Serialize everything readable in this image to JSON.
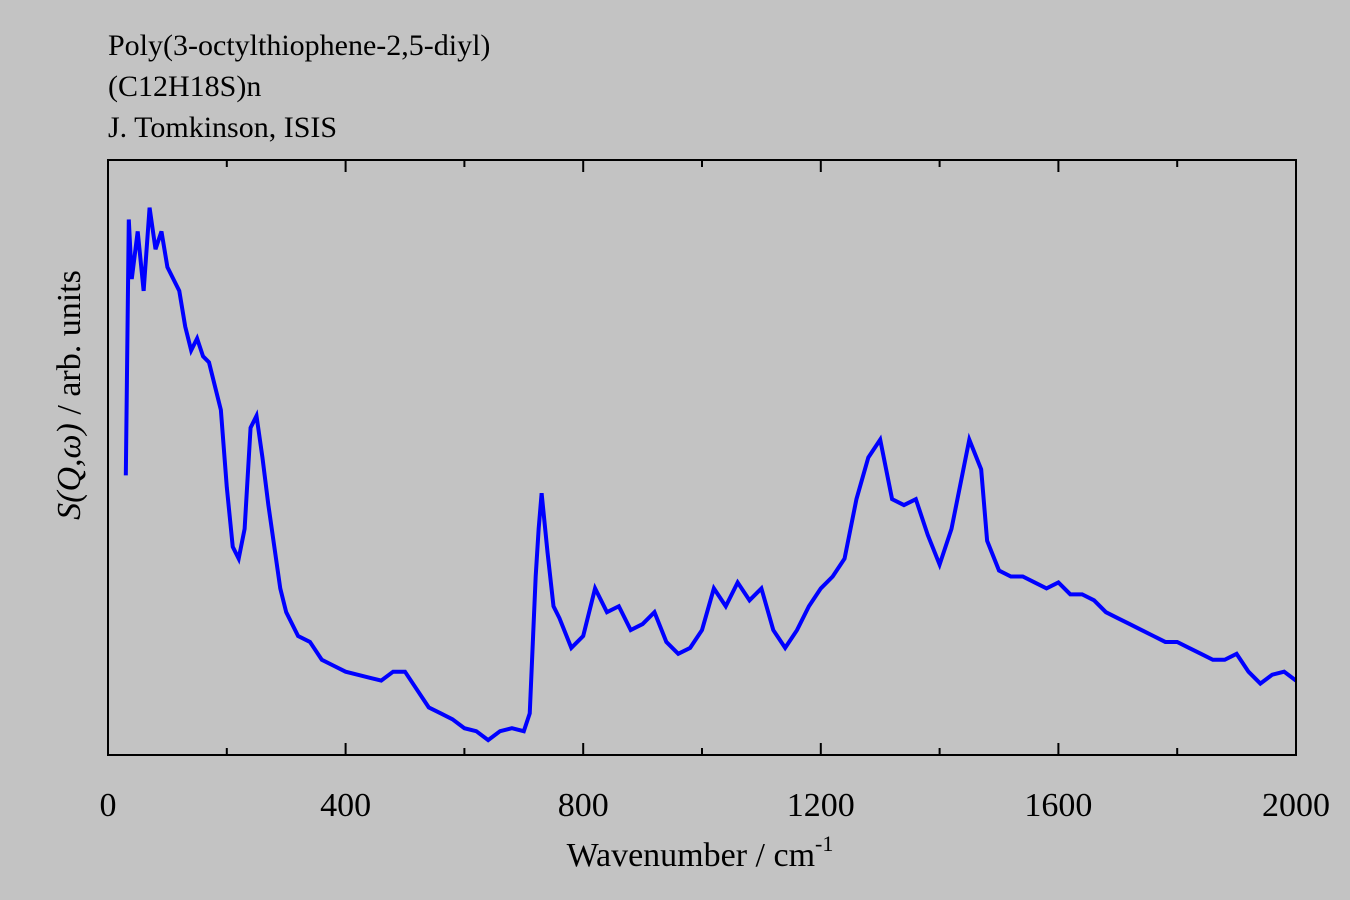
{
  "chart_data": {
    "type": "line",
    "title_lines": [
      "Poly(3-octylthiophene-2,5-diyl)",
      "(C12H18S)n",
      "J. Tomkinson, ISIS"
    ],
    "xlabel": "Wavenumber / cm",
    "xlabel_sup": "-1",
    "ylabel_italic": "S(Q,ω)",
    "ylabel": " / arb. units",
    "xlim": [
      0,
      2000
    ],
    "ylim": [
      0,
      100
    ],
    "xticks": [
      0,
      400,
      800,
      1200,
      1600,
      2000
    ],
    "xminorticks": [
      200,
      600,
      1000,
      1400,
      1800
    ],
    "grid": false,
    "series": [
      {
        "name": "S(Q,ω)",
        "color": "#0000ff",
        "x": [
          30,
          35,
          40,
          50,
          60,
          70,
          80,
          90,
          100,
          110,
          120,
          130,
          140,
          150,
          160,
          170,
          180,
          190,
          200,
          210,
          220,
          230,
          240,
          250,
          260,
          270,
          280,
          290,
          300,
          320,
          340,
          360,
          380,
          400,
          420,
          440,
          460,
          480,
          500,
          520,
          540,
          560,
          580,
          600,
          620,
          640,
          660,
          680,
          700,
          710,
          720,
          725,
          730,
          740,
          750,
          760,
          780,
          800,
          820,
          840,
          860,
          880,
          900,
          920,
          940,
          960,
          980,
          1000,
          1020,
          1040,
          1060,
          1080,
          1100,
          1120,
          1140,
          1160,
          1180,
          1200,
          1220,
          1240,
          1260,
          1280,
          1300,
          1320,
          1340,
          1360,
          1380,
          1400,
          1420,
          1440,
          1450,
          1470,
          1480,
          1500,
          1520,
          1540,
          1560,
          1580,
          1600,
          1620,
          1640,
          1660,
          1680,
          1700,
          1720,
          1740,
          1760,
          1780,
          1800,
          1820,
          1840,
          1860,
          1880,
          1900,
          1920,
          1940,
          1960,
          1980,
          2000
        ],
        "values": [
          47,
          90,
          80,
          88,
          78,
          92,
          85,
          88,
          82,
          80,
          78,
          72,
          68,
          70,
          67,
          66,
          62,
          58,
          45,
          35,
          33,
          38,
          55,
          57,
          50,
          42,
          35,
          28,
          24,
          20,
          19,
          16,
          15,
          14,
          13.5,
          13,
          12.5,
          14,
          14,
          11,
          8,
          7,
          6,
          4.5,
          4,
          2.5,
          4,
          4.5,
          4,
          7,
          30,
          38,
          44,
          34,
          25,
          23,
          18,
          20,
          28,
          24,
          25,
          21,
          22,
          24,
          19,
          17,
          18,
          21,
          28,
          25,
          29,
          26,
          28,
          21,
          18,
          21,
          25,
          28,
          30,
          33,
          43,
          50,
          53,
          43,
          42,
          43,
          37,
          32,
          38,
          48,
          53,
          48,
          36,
          31,
          30,
          30,
          29,
          28,
          29,
          27,
          27,
          26,
          24,
          23,
          22,
          21,
          20,
          19,
          19,
          18,
          17,
          16,
          16,
          17,
          14,
          12,
          13.5,
          14,
          12.5
        ]
      }
    ]
  }
}
